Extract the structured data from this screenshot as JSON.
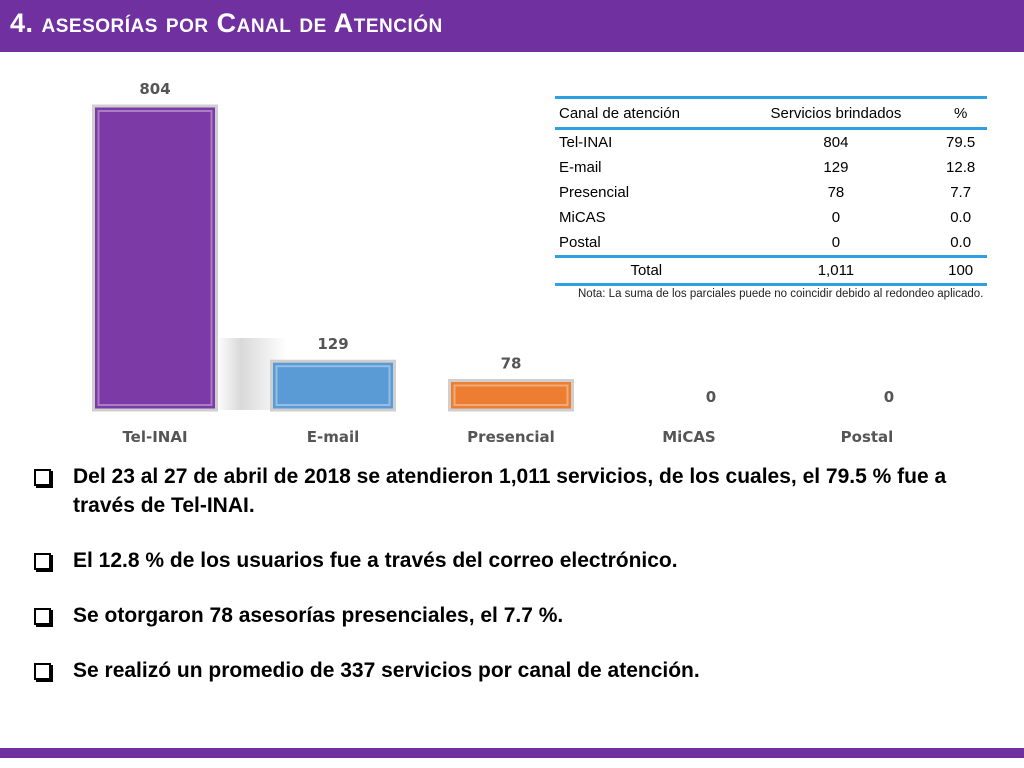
{
  "title": "4. asesorías por Canal de Atención",
  "chart_data": {
    "type": "bar",
    "categories": [
      "Tel-INAI",
      "E-mail",
      "Presencial",
      "MiCAS",
      "Postal"
    ],
    "values": [
      804,
      129,
      78,
      0,
      0
    ],
    "data_labels": [
      "804",
      "129",
      "78",
      "0",
      "0"
    ],
    "colors": [
      "#7b3aa6",
      "#5b9bd5",
      "#ed7d31",
      "#a5a5a5",
      "#a5a5a5"
    ],
    "ylim": [
      0,
      804
    ],
    "grid": false,
    "legend": "none"
  },
  "table": {
    "headers": [
      "Canal de atención",
      "Servicios brindados",
      "%"
    ],
    "rows": [
      [
        "Tel-INAI",
        "804",
        "79.5"
      ],
      [
        "E-mail",
        "129",
        "12.8"
      ],
      [
        "Presencial",
        "78",
        "7.7"
      ],
      [
        "MiCAS",
        "0",
        "0.0"
      ],
      [
        "Postal",
        "0",
        "0.0"
      ]
    ],
    "total": [
      "Total",
      "1,011",
      "100"
    ]
  },
  "note": "Nota: La suma de los parciales puede no coincidir debido al redondeo aplicado.",
  "bullets": [
    "Del 23 al 27 de abril de 2018 se atendieron 1,011 servicios, de los cuales, el 79.5 % fue a través de Tel-INAI.",
    "El 12.8 % de los usuarios fue a través del correo electrónico.",
    "Se otorgaron 78 asesorías presenciales, el 7.7 %.",
    "Se realizó un promedio de 337 servicios por canal de atención."
  ]
}
